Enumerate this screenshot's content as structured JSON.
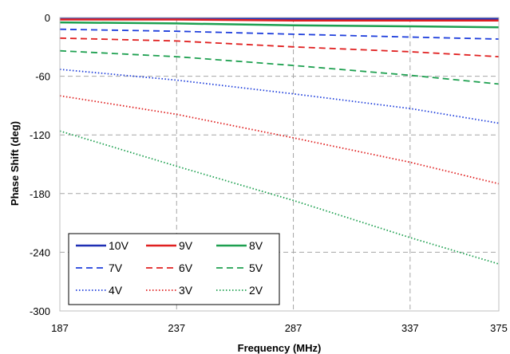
{
  "chart_data": {
    "type": "line",
    "title": "",
    "xlabel": "Frequency (MHz)",
    "ylabel": "Phase Shift (deg)",
    "xlim": [
      187,
      375
    ],
    "ylim": [
      -300,
      0
    ],
    "x_ticks": [
      "187",
      "237",
      "287",
      "337",
      "375"
    ],
    "y_ticks": [
      "0",
      "-60",
      "-120",
      "-180",
      "-240",
      "-300"
    ],
    "grid": true,
    "legend_position": "bottom-left",
    "x": [
      187,
      237,
      287,
      337,
      375
    ],
    "series": [
      {
        "name": "10V",
        "color": "#1f2fb4",
        "dash": "solid",
        "values": [
          -1,
          -1,
          -1,
          -1,
          -1
        ]
      },
      {
        "name": "9V",
        "color": "#e02020",
        "dash": "solid",
        "values": [
          -2,
          -2,
          -3,
          -3,
          -3
        ]
      },
      {
        "name": "8V",
        "color": "#1ea050",
        "dash": "solid",
        "values": [
          -5,
          -6,
          -8,
          -9,
          -10
        ]
      },
      {
        "name": "7V",
        "color": "#1f3fdc",
        "dash": "dashed",
        "values": [
          -12,
          -14,
          -17,
          -20,
          -22
        ]
      },
      {
        "name": "6V",
        "color": "#e02020",
        "dash": "dashed",
        "values": [
          -21,
          -24,
          -30,
          -35,
          -40
        ]
      },
      {
        "name": "5V",
        "color": "#1ea050",
        "dash": "dashed",
        "values": [
          -34,
          -40,
          -49,
          -59,
          -68
        ]
      },
      {
        "name": "4V",
        "color": "#1f3fdc",
        "dash": "dotted",
        "values": [
          -53,
          -64,
          -78,
          -93,
          -108
        ]
      },
      {
        "name": "3V",
        "color": "#e02020",
        "dash": "dotted",
        "values": [
          -80,
          -99,
          -123,
          -148,
          -170
        ]
      },
      {
        "name": "2V",
        "color": "#1ea050",
        "dash": "dotted",
        "values": [
          -116,
          -152,
          -187,
          -225,
          -252
        ]
      }
    ]
  }
}
